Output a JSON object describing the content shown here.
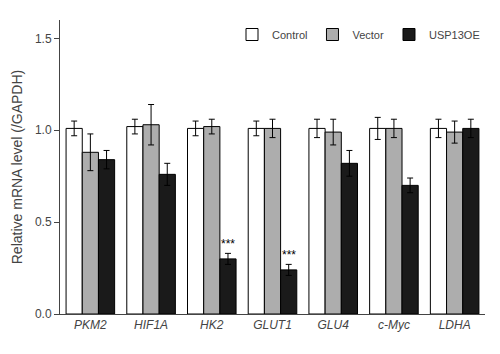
{
  "chart_data": {
    "type": "bar",
    "categories": [
      "PKM2",
      "HIF1A",
      "HK2",
      "GLUT1",
      "GLU4",
      "c-Myc",
      "LDHA"
    ],
    "series": [
      {
        "name": "Control",
        "color": "#ffffff",
        "values": [
          1.01,
          1.02,
          1.01,
          1.01,
          1.01,
          1.01,
          1.01
        ],
        "errors": [
          0.04,
          0.04,
          0.04,
          0.04,
          0.05,
          0.06,
          0.05
        ]
      },
      {
        "name": "Vector",
        "color": "#adadad",
        "values": [
          0.88,
          1.03,
          1.02,
          1.01,
          0.99,
          1.01,
          0.99
        ],
        "errors": [
          0.1,
          0.11,
          0.04,
          0.05,
          0.07,
          0.05,
          0.06
        ]
      },
      {
        "name": "USP13OE",
        "color": "#1a1a1a",
        "values": [
          0.84,
          0.76,
          0.3,
          0.24,
          0.82,
          0.7,
          1.01
        ],
        "errors": [
          0.05,
          0.06,
          0.03,
          0.03,
          0.07,
          0.04,
          0.05
        ]
      }
    ],
    "annotations": [
      {
        "text": "***",
        "category": "HK2",
        "series": "USP13OE"
      },
      {
        "text": "***",
        "category": "GLUT1",
        "series": "USP13OE"
      }
    ],
    "ylabel": "Relative mRNA level (/GAPDH)",
    "ylim": [
      0,
      1.6
    ],
    "yticks": [
      {
        "value": 0,
        "label": "0.0"
      },
      0.5,
      {
        "value": 1,
        "label": "1.0"
      },
      1.5
    ],
    "grid": false,
    "legend": "upper right"
  }
}
